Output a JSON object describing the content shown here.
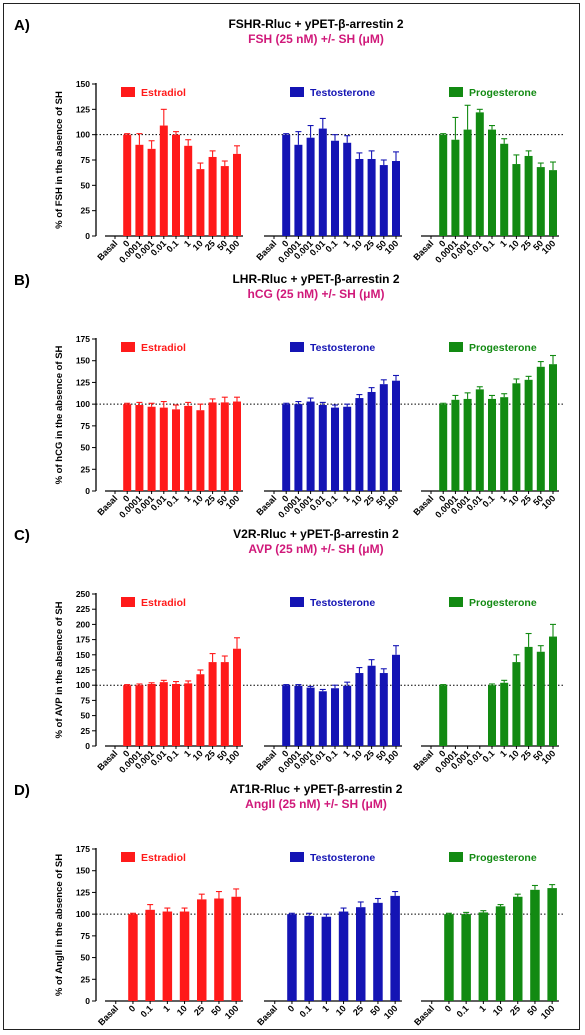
{
  "chart_data": [
    {
      "type": "bar",
      "panel": "A)",
      "title": "FSHR-Rluc + yPET-β-arrestin 2",
      "subtitle": "FSH (25 nM) +/- SH (μM)",
      "ylabel": "% of FSH in the absence of SH",
      "ylim": [
        0,
        150
      ],
      "yticks": [
        0,
        25,
        50,
        75,
        100,
        125,
        150
      ],
      "reference_line": 100,
      "series": [
        {
          "name": "Estradiol",
          "color": "#ff1a1a",
          "categories": [
            "Basal",
            "0",
            "0.0001",
            "0.001",
            "0.01",
            "0.1",
            "1",
            "10",
            "25",
            "50",
            "100"
          ],
          "values": [
            0,
            100,
            90,
            86,
            109,
            100,
            89,
            66,
            78,
            69,
            81
          ],
          "errors": [
            0,
            1,
            11,
            8,
            16,
            3,
            6,
            6,
            6,
            5,
            8
          ]
        },
        {
          "name": "Testosterone",
          "color": "#1414b4",
          "categories": [
            "Basal",
            "0",
            "0.0001",
            "0.001",
            "0.01",
            "0.1",
            "1",
            "10",
            "25",
            "50",
            "100"
          ],
          "values": [
            0,
            100,
            90,
            97,
            106,
            94,
            92,
            76,
            76,
            70,
            74
          ],
          "errors": [
            0,
            1,
            13,
            12,
            10,
            6,
            7,
            6,
            8,
            5,
            9
          ]
        },
        {
          "name": "Progesterone",
          "color": "#128a12",
          "categories": [
            "Basal",
            "0",
            "0.0001",
            "0.001",
            "0.01",
            "0.1",
            "1",
            "10",
            "25",
            "50",
            "100"
          ],
          "values": [
            0,
            100,
            95,
            105,
            122,
            105,
            91,
            71,
            79,
            68,
            65
          ],
          "errors": [
            0,
            1,
            22,
            24,
            3,
            4,
            5,
            9,
            5,
            4,
            8
          ]
        }
      ]
    },
    {
      "type": "bar",
      "panel": "B)",
      "title": "LHR-Rluc + yPET-β-arrestin 2",
      "subtitle": "hCG (25 nM) +/- SH (μM)",
      "ylabel": "% of hCG in the absence of SH",
      "ylim": [
        0,
        175
      ],
      "yticks": [
        0,
        25,
        50,
        75,
        100,
        125,
        150,
        175
      ],
      "reference_line": 100,
      "series": [
        {
          "name": "Estradiol",
          "color": "#ff1a1a",
          "categories": [
            "Basal",
            "0",
            "0.0001",
            "0.001",
            "0.01",
            "0.1",
            "1",
            "10",
            "25",
            "50",
            "100"
          ],
          "values": [
            0,
            100,
            99,
            97,
            96,
            94,
            98,
            93,
            102,
            102,
            103
          ],
          "errors": [
            0,
            1,
            3,
            4,
            7,
            5,
            4,
            7,
            4,
            6,
            5
          ]
        },
        {
          "name": "Testosterone",
          "color": "#1414b4",
          "categories": [
            "Basal",
            "0",
            "0.0001",
            "0.001",
            "0.01",
            "0.1",
            "1",
            "10",
            "25",
            "50",
            "100"
          ],
          "values": [
            0,
            100,
            100,
            103,
            99,
            96,
            97,
            107,
            114,
            123,
            127
          ],
          "errors": [
            0,
            1,
            3,
            4,
            3,
            3,
            3,
            4,
            5,
            5,
            6
          ]
        },
        {
          "name": "Progesterone",
          "color": "#128a12",
          "categories": [
            "Basal",
            "0",
            "0.0001",
            "0.001",
            "0.01",
            "0.1",
            "1",
            "10",
            "25",
            "50",
            "100"
          ],
          "values": [
            0,
            100,
            105,
            106,
            117,
            106,
            108,
            124,
            128,
            143,
            146
          ],
          "errors": [
            0,
            1,
            5,
            7,
            3,
            4,
            4,
            5,
            4,
            6,
            10
          ]
        }
      ]
    },
    {
      "type": "bar",
      "panel": "C)",
      "title": "V2R-Rluc + yPET-β-arrestin 2",
      "subtitle": "AVP (25 nM) +/- SH (μM)",
      "ylabel": "% of AVP in the absence of SH",
      "ylim": [
        0,
        250
      ],
      "yticks": [
        0,
        25,
        50,
        75,
        100,
        125,
        150,
        175,
        200,
        225,
        250
      ],
      "reference_line": 100,
      "series": [
        {
          "name": "Estradiol",
          "color": "#ff1a1a",
          "categories": [
            "Basal",
            "0",
            "0.0001",
            "0.001",
            "0.01",
            "0.1",
            "1",
            "10",
            "25",
            "50",
            "100"
          ],
          "values": [
            0,
            100,
            100,
            102,
            105,
            102,
            103,
            118,
            138,
            138,
            160
          ],
          "errors": [
            0,
            1,
            2,
            2,
            3,
            4,
            4,
            7,
            14,
            10,
            18
          ]
        },
        {
          "name": "Testosterone",
          "color": "#1414b4",
          "categories": [
            "Basal",
            "0",
            "0.0001",
            "0.001",
            "0.01",
            "0.1",
            "1",
            "10",
            "25",
            "50",
            "100"
          ],
          "values": [
            0,
            100,
            99,
            96,
            90,
            95,
            99,
            120,
            132,
            120,
            150
          ],
          "errors": [
            0,
            1,
            2,
            2,
            3,
            5,
            6,
            9,
            10,
            7,
            15
          ]
        },
        {
          "name": "Progesterone",
          "color": "#128a12",
          "categories": [
            "Basal",
            "0",
            "0.0001",
            "0.001",
            "0.01",
            "0.1",
            "1",
            "10",
            "25",
            "50",
            "100"
          ],
          "values": [
            0,
            100,
            0,
            0,
            0,
            100,
            104,
            138,
            163,
            155,
            180
          ],
          "errors": [
            0,
            1,
            0,
            0,
            0,
            2,
            4,
            12,
            22,
            10,
            20
          ]
        }
      ]
    },
    {
      "type": "bar",
      "panel": "D)",
      "title": "AT1R-Rluc + yPET-β-arrestin 2",
      "subtitle": "AngII (25 nM) +/- SH (μM)",
      "ylabel": "% of AngII in the absence of SH",
      "ylim": [
        0,
        175
      ],
      "yticks": [
        0,
        25,
        50,
        75,
        100,
        125,
        150,
        175
      ],
      "reference_line": 100,
      "series": [
        {
          "name": "Estradiol",
          "color": "#ff1a1a",
          "categories": [
            "Basal",
            "0",
            "0.1",
            "1",
            "10",
            "25",
            "50",
            "100"
          ],
          "values": [
            0,
            100,
            105,
            103,
            103,
            117,
            118,
            120
          ],
          "errors": [
            0,
            1,
            6,
            4,
            4,
            6,
            8,
            9
          ]
        },
        {
          "name": "Testosterone",
          "color": "#1414b4",
          "categories": [
            "Basal",
            "0",
            "0.1",
            "1",
            "10",
            "25",
            "50",
            "100"
          ],
          "values": [
            0,
            100,
            98,
            97,
            103,
            108,
            113,
            121
          ],
          "errors": [
            0,
            1,
            3,
            3,
            4,
            6,
            5,
            5
          ]
        },
        {
          "name": "Progesterone",
          "color": "#128a12",
          "categories": [
            "Basal",
            "0",
            "0.1",
            "1",
            "10",
            "25",
            "50",
            "100"
          ],
          "values": [
            0,
            100,
            100,
            102,
            109,
            120,
            128,
            130
          ],
          "errors": [
            0,
            1,
            2,
            2,
            2,
            3,
            5,
            4
          ]
        }
      ]
    }
  ]
}
